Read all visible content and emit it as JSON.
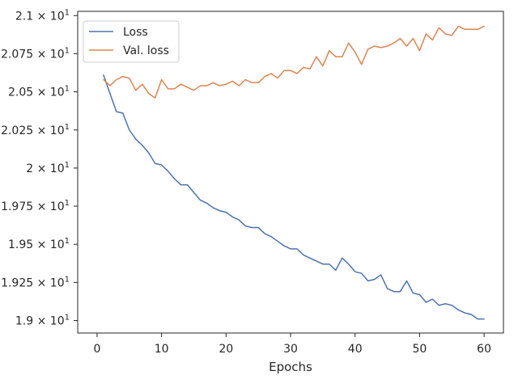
{
  "chart_data": {
    "type": "line",
    "title": "",
    "xlabel": "Epochs",
    "ylabel": "",
    "xlim": [
      -3,
      63
    ],
    "ylim": [
      18.918,
      21.028
    ],
    "xticks": [
      0,
      10,
      20,
      30,
      40,
      50,
      60
    ],
    "yticks": [
      {
        "value": 19.0,
        "mantissa": "1.9"
      },
      {
        "value": 19.25,
        "mantissa": "1.925"
      },
      {
        "value": 19.5,
        "mantissa": "1.95"
      },
      {
        "value": 19.75,
        "mantissa": "1.975"
      },
      {
        "value": 20.0,
        "mantissa": "2"
      },
      {
        "value": 20.25,
        "mantissa": "2.025"
      },
      {
        "value": 20.5,
        "mantissa": "2.05"
      },
      {
        "value": 20.75,
        "mantissa": "2.075"
      },
      {
        "value": 21.0,
        "mantissa": "2.1"
      }
    ],
    "ytick_base": "10",
    "ytick_exponent": "1",
    "grid": false,
    "legend_position": "top-left",
    "x": [
      1,
      2,
      3,
      4,
      5,
      6,
      7,
      8,
      9,
      10,
      11,
      12,
      13,
      14,
      15,
      16,
      17,
      18,
      19,
      20,
      21,
      22,
      23,
      24,
      25,
      26,
      27,
      28,
      29,
      30,
      31,
      32,
      33,
      34,
      35,
      36,
      37,
      38,
      39,
      40,
      41,
      42,
      43,
      44,
      45,
      46,
      47,
      48,
      49,
      50,
      51,
      52,
      53,
      54,
      55,
      56,
      57,
      58,
      59,
      60
    ],
    "series": [
      {
        "name": "Loss",
        "color": "#4c72b0",
        "values": [
          20.61,
          20.49,
          20.37,
          20.36,
          20.25,
          20.19,
          20.15,
          20.1,
          20.03,
          20.02,
          19.98,
          19.93,
          19.89,
          19.89,
          19.84,
          19.79,
          19.77,
          19.74,
          19.72,
          19.71,
          19.68,
          19.66,
          19.62,
          19.61,
          19.61,
          19.57,
          19.55,
          19.52,
          19.49,
          19.47,
          19.47,
          19.43,
          19.41,
          19.39,
          19.37,
          19.37,
          19.33,
          19.41,
          19.37,
          19.32,
          19.31,
          19.26,
          19.27,
          19.3,
          19.21,
          19.19,
          19.19,
          19.26,
          19.18,
          19.17,
          19.12,
          19.14,
          19.1,
          19.11,
          19.1,
          19.07,
          19.05,
          19.04,
          19.01,
          19.01
        ]
      },
      {
        "name": "Val. loss",
        "color": "#dd8452",
        "values": [
          20.58,
          20.54,
          20.58,
          20.6,
          20.59,
          20.51,
          20.55,
          20.49,
          20.46,
          20.58,
          20.52,
          20.52,
          20.55,
          20.53,
          20.51,
          20.54,
          20.54,
          20.56,
          20.54,
          20.55,
          20.57,
          20.54,
          20.58,
          20.56,
          20.56,
          20.6,
          20.62,
          20.59,
          20.64,
          20.64,
          20.62,
          20.66,
          20.65,
          20.73,
          20.67,
          20.77,
          20.73,
          20.73,
          20.82,
          20.76,
          20.68,
          20.78,
          20.8,
          20.79,
          20.8,
          20.82,
          20.85,
          20.8,
          20.85,
          20.77,
          20.88,
          20.84,
          20.92,
          20.88,
          20.87,
          20.93,
          20.91,
          20.91,
          20.91,
          20.93
        ]
      }
    ]
  }
}
